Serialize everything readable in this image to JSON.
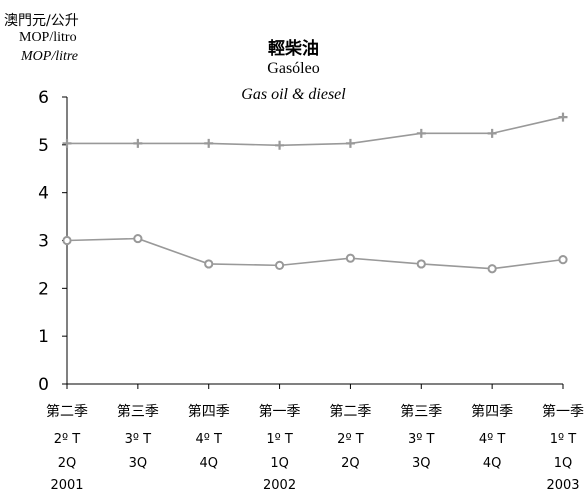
{
  "chart_data": {
    "type": "line",
    "title": "輕柴油",
    "subtitle": "Gasóleo",
    "subtitle2": "Gas oil & diesel",
    "ylabel": "澳門元/公升",
    "ylabel2": "MOP/litro",
    "ylabel3": "MOP/litre",
    "ylim": [
      0,
      6
    ],
    "yticks": [
      "0",
      "1",
      "2",
      "3",
      "4",
      "5",
      "6"
    ],
    "categories": [
      {
        "zh": "第二季",
        "pt": "2º T",
        "en": "2Q",
        "year": "2001"
      },
      {
        "zh": "第三季",
        "pt": "3º T",
        "en": "3Q",
        "year": ""
      },
      {
        "zh": "第四季",
        "pt": "4º T",
        "en": "4Q",
        "year": ""
      },
      {
        "zh": "第一季",
        "pt": "1º T",
        "en": "1Q",
        "year": "2002"
      },
      {
        "zh": "第二季",
        "pt": "2º T",
        "en": "2Q",
        "year": ""
      },
      {
        "zh": "第三季",
        "pt": "3º T",
        "en": "3Q",
        "year": ""
      },
      {
        "zh": "第四季",
        "pt": "4º T",
        "en": "4Q",
        "year": ""
      },
      {
        "zh": "第一季",
        "pt": "1º T",
        "en": "1Q",
        "year": "2003"
      }
    ],
    "series": [
      {
        "values": [
          5.03,
          5.03,
          5.03,
          4.99,
          5.03,
          5.24,
          5.24,
          5.58
        ],
        "marker": "plus",
        "color": "#999999"
      },
      {
        "values": [
          3.0,
          3.04,
          2.51,
          2.48,
          2.63,
          2.51,
          2.41,
          2.6
        ],
        "marker": "circle",
        "color": "#999999"
      }
    ],
    "grid": false,
    "legend": "none"
  }
}
